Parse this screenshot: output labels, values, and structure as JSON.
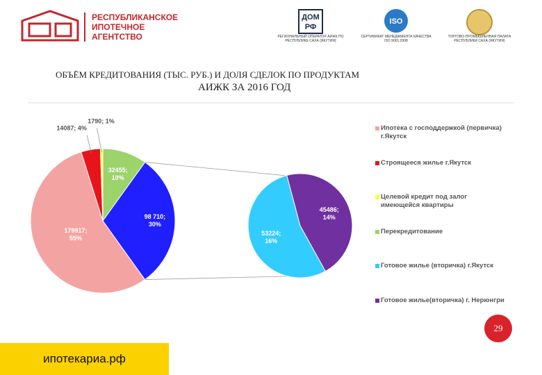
{
  "header": {
    "agency": "РЕСПУБЛИКАНСКОЕ ИПОТЕЧНОЕ АГЕНТСТВО",
    "logos": [
      {
        "mark_top": "ДОМ",
        "mark_bottom": "РФ",
        "caption": "РЕГИОНАЛЬНЫЙ ОПЕРАТОР АИЖК ПО РЕСПУБЛИКЕ САХА (ЯКУТИЯ)"
      },
      {
        "mark_top": "ISO",
        "caption": "СЕРТИФИКАТ МЕНЕДЖМЕНТА КАЧЕСТВА ISO 9001:2008"
      },
      {
        "caption": "ТОРГОВО-ПРОМЫШЛЕННАЯ ПАЛАТА РЕСПУБЛИКИ САХА (ЯКУТИЯ)"
      }
    ]
  },
  "chart_data": {
    "type": "pie-of-pie",
    "title": "ОБЪЁМ КРЕДИТОВАНИЯ (ТЫС. РУБ.) И ДОЛЯ СДЕЛОК ПО ПРОДУКТАМ",
    "subtitle": "АИЖК ЗА 2016 ГОД",
    "primary": {
      "categories": [
        "Ипотека с господдержкой (первичка) г.Якутск",
        "Строящееся жилье г.Якутск",
        "Целевой кредит под залог имеющейся квартиры",
        "Перекредитование"
      ],
      "values": [
        179917,
        14087,
        1790,
        32455
      ],
      "value_labels": [
        "179917; 55%",
        "14087; 4%",
        "1790; 1%",
        "32455; 10%"
      ],
      "colors": [
        "#f4a3a3",
        "#e8141c",
        "#ffff33",
        "#9dd36b"
      ]
    },
    "combined": {
      "label": "98 710; 30%",
      "color": "#1f1fff"
    },
    "secondary": {
      "categories": [
        "Готовое жилье (вторичка) г.Якутск",
        "Готовое жилье(вторичка) г. Нерюнгри"
      ],
      "values": [
        53224,
        45486
      ],
      "value_labels": [
        "53224; 16%",
        "45486; 14%"
      ],
      "colors": [
        "#33ccff",
        "#7030a0"
      ]
    }
  },
  "page_number": "29",
  "footer": "ипотекариа.рф"
}
